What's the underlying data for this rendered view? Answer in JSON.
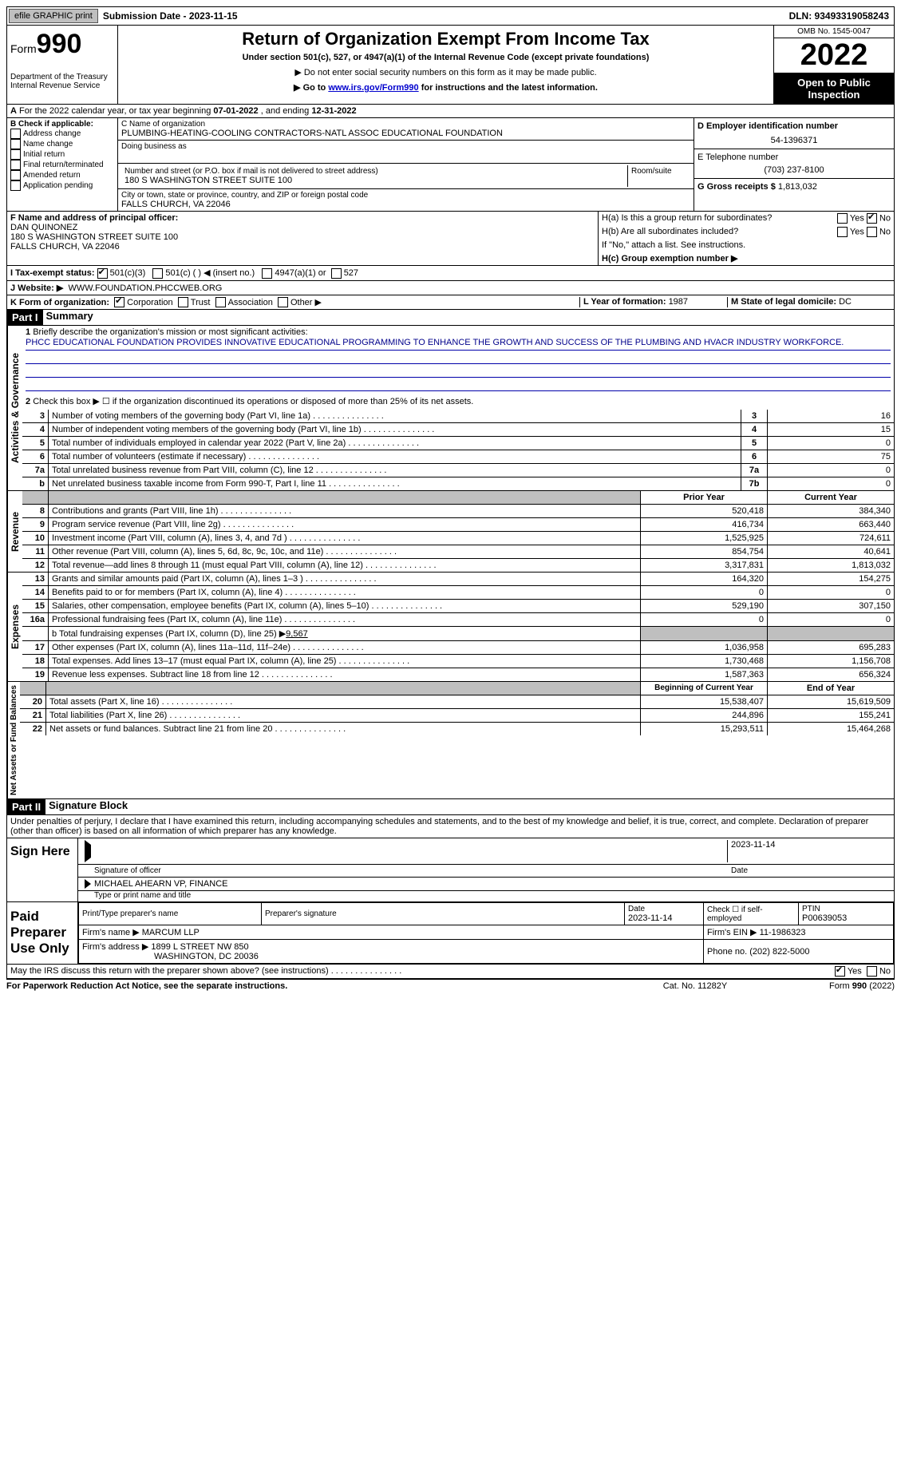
{
  "topbar": {
    "efile": "efile GRAPHIC print",
    "sub_label": "Submission Date - 2023-11-15",
    "dln": "DLN: 93493319058243"
  },
  "header": {
    "form_word": "Form",
    "form_num": "990",
    "dept": "Department of the Treasury",
    "irs": "Internal Revenue Service",
    "title": "Return of Organization Exempt From Income Tax",
    "sub1": "Under section 501(c), 527, or 4947(a)(1) of the Internal Revenue Code (except private foundations)",
    "sub2": "Do not enter social security numbers on this form as it may be made public.",
    "sub3_a": "Go to ",
    "sub3_link": "www.irs.gov/Form990",
    "sub3_b": " for instructions and the latest information.",
    "omb": "OMB No. 1545-0047",
    "year": "2022",
    "open": "Open to Public Inspection"
  },
  "rowA": {
    "a": "A",
    "text_a": "For the 2022 calendar year, or tax year beginning ",
    "begin": "07-01-2022",
    "text_b": " , and ending ",
    "end": "12-31-2022"
  },
  "B": {
    "hdr": "B Check if applicable:",
    "items": [
      "Address change",
      "Name change",
      "Initial return",
      "Final return/terminated",
      "Amended return",
      "Application pending"
    ]
  },
  "C": {
    "name_lab": "C Name of organization",
    "name": "PLUMBING-HEATING-COOLING CONTRACTORS-NATL ASSOC EDUCATIONAL FOUNDATION",
    "dba_lab": "Doing business as",
    "street_lab": "Number and street (or P.O. box if mail is not delivered to street address)",
    "street": "180 S WASHINGTON STREET SUITE 100",
    "room_lab": "Room/suite",
    "city_lab": "City or town, state or province, country, and ZIP or foreign postal code",
    "city": "FALLS CHURCH, VA  22046"
  },
  "D": {
    "lab": "D Employer identification number",
    "val": "54-1396371"
  },
  "E": {
    "lab": "E Telephone number",
    "val": "(703) 237-8100"
  },
  "G": {
    "lab": "G Gross receipts $ ",
    "val": "1,813,032"
  },
  "F": {
    "lab": "F  Name and address of principal officer:",
    "name": "DAN QUINONEZ",
    "addr1": "180 S WASHINGTON STREET SUITE 100",
    "addr2": "FALLS CHURCH, VA  22046"
  },
  "H": {
    "a_lab": "H(a)  Is this a group return for subordinates?",
    "a_no": "No",
    "b_lab": "H(b)  Are all subordinates included?",
    "b_note": "If \"No,\" attach a list. See instructions.",
    "c_lab": "H(c)  Group exemption number ▶"
  },
  "I": {
    "lab": "I   Tax-exempt status:",
    "o1": "501(c)(3)",
    "o2": "501(c) (  ) ◀ (insert no.)",
    "o3": "4947(a)(1) or",
    "o4": "527"
  },
  "J": {
    "lab": "J   Website: ▶",
    "val": "WWW.FOUNDATION.PHCCWEB.ORG"
  },
  "K": {
    "lab": "K Form of organization:",
    "o": [
      "Corporation",
      "Trust",
      "Association",
      "Other ▶"
    ]
  },
  "L": {
    "lab": "L Year of formation: ",
    "val": "1987"
  },
  "M": {
    "lab": "M State of legal domicile: ",
    "val": "DC"
  },
  "part1": {
    "num": "Part I",
    "title": "Summary"
  },
  "p1": {
    "l1": "Briefly describe the organization's mission or most significant activities:",
    "mission": "PHCC EDUCATIONAL FOUNDATION PROVIDES INNOVATIVE EDUCATIONAL PROGRAMMING TO ENHANCE THE GROWTH AND SUCCESS OF THE PLUMBING AND HVACR INDUSTRY WORKFORCE.",
    "l2": "Check this box ▶ ☐  if the organization discontinued its operations or disposed of more than 25% of its net assets.",
    "rows_a": [
      {
        "n": "3",
        "t": "Number of voting members of the governing body (Part VI, line 1a)",
        "b": "3",
        "v": "16"
      },
      {
        "n": "4",
        "t": "Number of independent voting members of the governing body (Part VI, line 1b)",
        "b": "4",
        "v": "15"
      },
      {
        "n": "5",
        "t": "Total number of individuals employed in calendar year 2022 (Part V, line 2a)",
        "b": "5",
        "v": "0"
      },
      {
        "n": "6",
        "t": "Total number of volunteers (estimate if necessary)",
        "b": "6",
        "v": "75"
      },
      {
        "n": "7a",
        "t": "Total unrelated business revenue from Part VIII, column (C), line 12",
        "b": "7a",
        "v": "0"
      },
      {
        "n": "b",
        "t": "Net unrelated business taxable income from Form 990-T, Part I, line 11",
        "b": "7b",
        "v": "0"
      }
    ],
    "hdr_prior": "Prior Year",
    "hdr_curr": "Current Year",
    "rows_rev": [
      {
        "n": "8",
        "t": "Contributions and grants (Part VIII, line 1h)",
        "p": "520,418",
        "c": "384,340"
      },
      {
        "n": "9",
        "t": "Program service revenue (Part VIII, line 2g)",
        "p": "416,734",
        "c": "663,440"
      },
      {
        "n": "10",
        "t": "Investment income (Part VIII, column (A), lines 3, 4, and 7d )",
        "p": "1,525,925",
        "c": "724,611"
      },
      {
        "n": "11",
        "t": "Other revenue (Part VIII, column (A), lines 5, 6d, 8c, 9c, 10c, and 11e)",
        "p": "854,754",
        "c": "40,641"
      },
      {
        "n": "12",
        "t": "Total revenue—add lines 8 through 11 (must equal Part VIII, column (A), line 12)",
        "p": "3,317,831",
        "c": "1,813,032"
      }
    ],
    "rows_exp": [
      {
        "n": "13",
        "t": "Grants and similar amounts paid (Part IX, column (A), lines 1–3 )",
        "p": "164,320",
        "c": "154,275"
      },
      {
        "n": "14",
        "t": "Benefits paid to or for members (Part IX, column (A), line 4)",
        "p": "0",
        "c": "0"
      },
      {
        "n": "15",
        "t": "Salaries, other compensation, employee benefits (Part IX, column (A), lines 5–10)",
        "p": "529,190",
        "c": "307,150"
      },
      {
        "n": "16a",
        "t": "Professional fundraising fees (Part IX, column (A), line 11e)",
        "p": "0",
        "c": "0"
      }
    ],
    "l16b": "b  Total fundraising expenses (Part IX, column (D), line 25) ▶",
    "l16b_v": "9,567",
    "rows_exp2": [
      {
        "n": "17",
        "t": "Other expenses (Part IX, column (A), lines 11a–11d, 11f–24e)",
        "p": "1,036,958",
        "c": "695,283"
      },
      {
        "n": "18",
        "t": "Total expenses. Add lines 13–17 (must equal Part IX, column (A), line 25)",
        "p": "1,730,468",
        "c": "1,156,708"
      },
      {
        "n": "19",
        "t": "Revenue less expenses. Subtract line 18 from line 12",
        "p": "1,587,363",
        "c": "656,324"
      }
    ],
    "hdr_begin": "Beginning of Current Year",
    "hdr_end": "End of Year",
    "rows_net": [
      {
        "n": "20",
        "t": "Total assets (Part X, line 16)",
        "p": "15,538,407",
        "c": "15,619,509"
      },
      {
        "n": "21",
        "t": "Total liabilities (Part X, line 26)",
        "p": "244,896",
        "c": "155,241"
      },
      {
        "n": "22",
        "t": "Net assets or fund balances. Subtract line 21 from line 20",
        "p": "15,293,511",
        "c": "15,464,268"
      }
    ]
  },
  "tabs": {
    "ag": "Activities & Governance",
    "rev": "Revenue",
    "exp": "Expenses",
    "net": "Net Assets or Fund Balances"
  },
  "part2": {
    "num": "Part II",
    "title": "Signature Block"
  },
  "perjury": "Under penalties of perjury, I declare that I have examined this return, including accompanying schedules and statements, and to the best of my knowledge and belief, it is true, correct, and complete. Declaration of preparer (other than officer) is based on all information of which preparer has any knowledge.",
  "sign": {
    "here": "Sign Here",
    "sig_of": "Signature of officer",
    "date": "Date",
    "date_v": "2023-11-14",
    "name": "MICHAEL AHEARN  VP, FINANCE",
    "name_lab": "Type or print name and title"
  },
  "prep": {
    "title": "Paid Preparer Use Only",
    "name_lab": "Print/Type preparer's name",
    "sig_lab": "Preparer's signature",
    "date_lab": "Date",
    "date_v": "2023-11-14",
    "self": "Check ☐ if self-employed",
    "ptin_lab": "PTIN",
    "ptin": "P00639053",
    "firm_lab": "Firm's name   ▶",
    "firm": "MARCUM LLP",
    "ein_lab": "Firm's EIN ▶",
    "ein": "11-1986323",
    "addr_lab": "Firm's address ▶",
    "addr1": "1899 L STREET NW 850",
    "addr2": "WASHINGTON, DC  20036",
    "phone_lab": "Phone no.",
    "phone": "(202) 822-5000"
  },
  "discuss": {
    "q": "May the IRS discuss this return with the preparer shown above? (see instructions)",
    "yes": "Yes",
    "no": "No"
  },
  "foot": {
    "l": "For Paperwork Reduction Act Notice, see the separate instructions.",
    "m": "Cat. No. 11282Y",
    "r": "Form 990 (2022)"
  },
  "yn": {
    "yes": "Yes",
    "no": "No"
  }
}
